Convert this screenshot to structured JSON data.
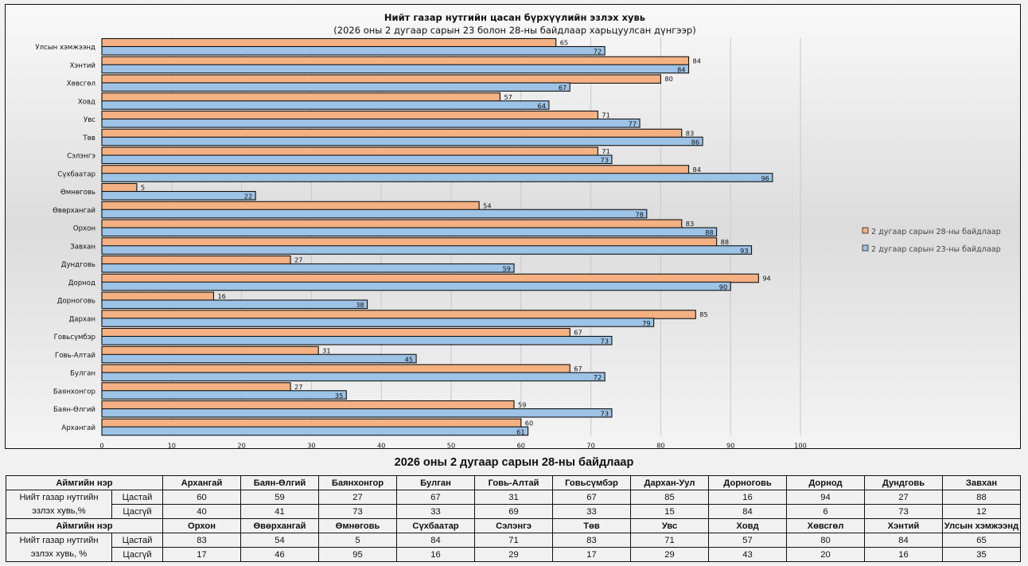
{
  "chart_data": {
    "type": "bar",
    "orientation": "horizontal",
    "title": "Нийт газар нутгийн цасан бүрхүүлийн эзлэх хувь",
    "subtitle": "(2026 оны 2 дугаар сарын 23 болон 28-ны байдлаар харьцуулсан дүнгээр)",
    "xlabel": "",
    "ylabel": "",
    "xlim": [
      0,
      100
    ],
    "xticks": [
      0,
      10,
      20,
      30,
      40,
      50,
      60,
      70,
      80,
      90,
      100
    ],
    "grid": true,
    "legend_position": "right",
    "categories": [
      "Улсын хэмжээнд",
      "Хэнтий",
      "Хөвсгөл",
      "Ховд",
      "Увс",
      "Төв",
      "Сэлэнгэ",
      "Сүхбаатар",
      "Өмнөговь",
      "Өвөрхангай",
      "Орхон",
      "Завхан",
      "Дундговь",
      "Дорнод",
      "Дорноговь",
      "Дархан",
      "Говьсүмбэр",
      "Говь-Алтай",
      "Булган",
      "Баянхонгор",
      "Баян-Өлгий",
      "Архангай"
    ],
    "series": [
      {
        "name": "2 дугаар сарын 28-ны байдлаар",
        "color": "#f4b183",
        "values": [
          65,
          84,
          80,
          57,
          71,
          83,
          71,
          84,
          5,
          54,
          83,
          88,
          27,
          94,
          16,
          85,
          67,
          31,
          67,
          27,
          59,
          60
        ]
      },
      {
        "name": "2 дугаар сарын 23-ны байдлаар",
        "color": "#9dc3e6",
        "values": [
          72,
          84,
          67,
          64,
          77,
          86,
          73,
          96,
          22,
          78,
          88,
          93,
          59,
          90,
          38,
          79,
          73,
          45,
          72,
          35,
          73,
          61
        ]
      }
    ]
  },
  "table": {
    "title": "2026 оны 2 дугаар сарын 28-ны байдлаар",
    "blocks": [
      {
        "header_label": "Аймгийн нэр",
        "row_label_line1": "Нийт газар нутгийн",
        "row_label_line2": "эзлэх хувь,%",
        "row1_label": "Цастай",
        "row2_label": "Цасгүй",
        "columns": [
          "Архангай",
          "Баян-Өлгий",
          "Баянхонгор",
          "Булган",
          "Говь-Алтай",
          "Говьсүмбэр",
          "Дархан-Уул",
          "Дорноговь",
          "Дорнод",
          "Дундговь",
          "Завхан"
        ],
        "with_snow": [
          "60",
          "59",
          "27",
          "67",
          "31",
          "67",
          "85",
          "16",
          "94",
          "27",
          "88"
        ],
        "without_snow": [
          "40",
          "41",
          "73",
          "33",
          "69",
          "33",
          "15",
          "84",
          "6",
          "73",
          "12"
        ]
      },
      {
        "header_label": "Аймгийн нэр",
        "row_label_line1": "Нийт газар нутгийн",
        "row_label_line2": "эзлэх хувь, %",
        "row1_label": "Цастай",
        "row2_label": "Цасгүй",
        "columns": [
          "Орхон",
          "Өвөрхангай",
          "Өмнөговь",
          "Сүхбаатар",
          "Сэлэнгэ",
          "Төв",
          "Увс",
          "Ховд",
          "Хөвсгөл",
          "Хэнтий",
          "Улсын хэмжээнд"
        ],
        "with_snow": [
          "83",
          "54",
          "5",
          "84",
          "71",
          "83",
          "71",
          "57",
          "80",
          "84",
          "65"
        ],
        "without_snow": [
          "17",
          "46",
          "95",
          "16",
          "29",
          "17",
          "29",
          "43",
          "20",
          "16",
          "35"
        ]
      }
    ]
  }
}
